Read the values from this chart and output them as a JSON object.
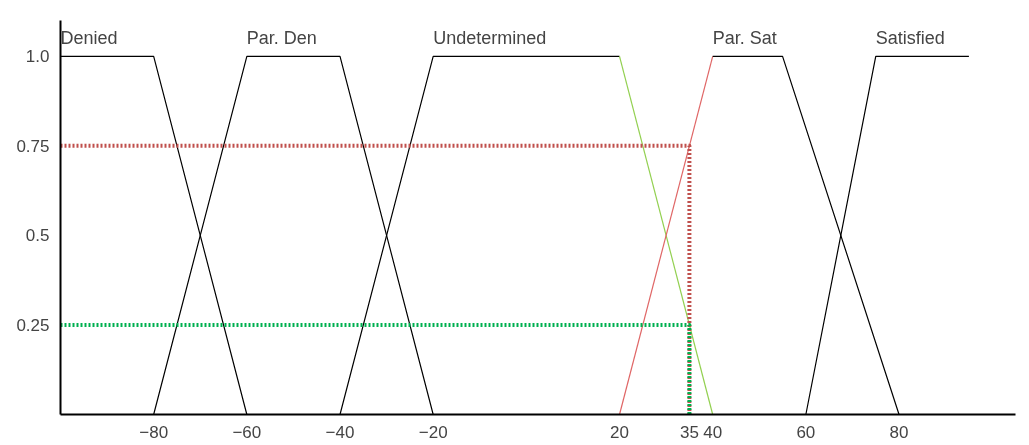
{
  "chart_data": {
    "type": "line",
    "xlim": [
      -100,
      105
    ],
    "ylim": [
      0,
      1.1
    ],
    "xticks": [
      -80,
      -60,
      -40,
      -20,
      20,
      35,
      40,
      60,
      80
    ],
    "yticks": [
      0.25,
      0.5,
      0.75,
      {
        "value": 1,
        "label": "1.0"
      }
    ],
    "grid": false,
    "marker": "none",
    "series": [
      {
        "name": "Denied",
        "color": "#000000",
        "x": [
          -100,
          -80,
          -60
        ],
        "values": [
          1,
          1,
          0
        ]
      },
      {
        "name": "Par. Den",
        "color": "#000000",
        "x": [
          -80,
          -60,
          -40,
          -20
        ],
        "values": [
          0,
          1,
          1,
          0
        ]
      },
      {
        "name": "Undetermined",
        "color": "#000000",
        "x": [
          -40,
          -20,
          20
        ],
        "values": [
          0,
          1,
          1
        ]
      },
      {
        "color": "#92d050",
        "x": [
          20,
          40
        ],
        "values": [
          1,
          0
        ]
      },
      {
        "color": "#e06666",
        "x": [
          20,
          40
        ],
        "values": [
          0,
          1
        ]
      },
      {
        "name": "Par. Sat",
        "color": "#000000",
        "x": [
          40,
          55,
          80
        ],
        "values": [
          1,
          1,
          0
        ]
      },
      {
        "name": "Satisfied",
        "color": "#000000",
        "x": [
          60,
          75,
          95
        ],
        "values": [
          0,
          1,
          1
        ]
      },
      {
        "color": "#c0504d",
        "line_style": "dotted",
        "x": [
          -100,
          35,
          35
        ],
        "values": [
          0.75,
          0.75,
          0
        ]
      },
      {
        "color": "#00b050",
        "line_style": "dotted",
        "x": [
          -100,
          35,
          35
        ],
        "values": [
          0.25,
          0.25,
          0
        ]
      }
    ]
  }
}
